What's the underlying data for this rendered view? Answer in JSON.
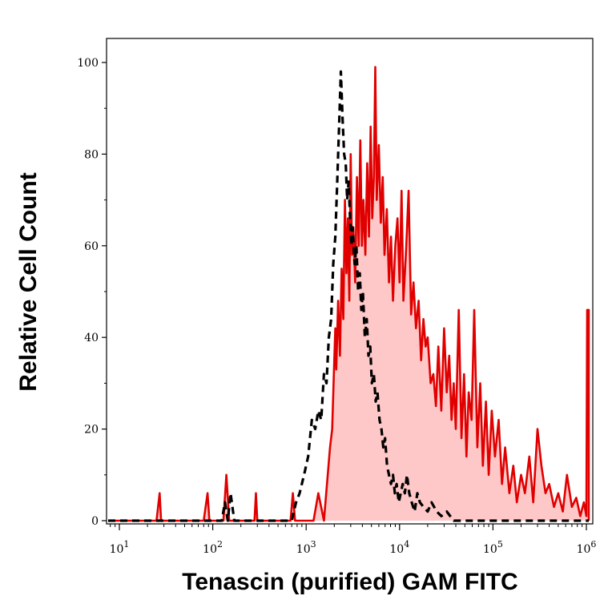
{
  "chart_data": {
    "type": "area",
    "xlabel": "Tenascin (purified) GAM FITC",
    "ylabel": "Relative Cell Count",
    "x_scale": "log",
    "xlim": [
      10,
      1000000
    ],
    "ylim": [
      0,
      100
    ],
    "y_ticks": [
      "0",
      "20",
      "40",
      "60",
      "80",
      "100"
    ],
    "x_ticks": [
      {
        "base": "10",
        "exp": "1",
        "value": 10
      },
      {
        "base": "10",
        "exp": "2",
        "value": 100
      },
      {
        "base": "10",
        "exp": "3",
        "value": 1000
      },
      {
        "base": "10",
        "exp": "4",
        "value": 10000
      },
      {
        "base": "10",
        "exp": "5",
        "value": 100000
      },
      {
        "base": "10",
        "exp": "6",
        "value": 1000000
      }
    ],
    "grid": false,
    "series": [
      {
        "style": "filled red histogram",
        "line_color": "#e00000",
        "fill_color": "#ffc8c8",
        "points": [
          [
            7,
            0
          ],
          [
            25,
            0
          ],
          [
            27,
            6
          ],
          [
            28,
            0
          ],
          [
            80,
            0
          ],
          [
            88,
            6
          ],
          [
            92,
            0
          ],
          [
            130,
            0
          ],
          [
            140,
            10
          ],
          [
            150,
            0
          ],
          [
            280,
            0
          ],
          [
            290,
            6
          ],
          [
            300,
            0
          ],
          [
            680,
            0
          ],
          [
            720,
            6
          ],
          [
            760,
            0
          ],
          [
            1200,
            0
          ],
          [
            1350,
            6
          ],
          [
            1550,
            0
          ],
          [
            1800,
            16
          ],
          [
            1900,
            20
          ],
          [
            2000,
            35
          ],
          [
            2050,
            42
          ],
          [
            2100,
            33
          ],
          [
            2200,
            48
          ],
          [
            2300,
            36
          ],
          [
            2400,
            55
          ],
          [
            2500,
            44
          ],
          [
            2600,
            70
          ],
          [
            2700,
            54
          ],
          [
            2800,
            66
          ],
          [
            2900,
            48
          ],
          [
            3000,
            80
          ],
          [
            3100,
            58
          ],
          [
            3200,
            64
          ],
          [
            3350,
            52
          ],
          [
            3500,
            75
          ],
          [
            3650,
            60
          ],
          [
            3800,
            83
          ],
          [
            3950,
            60
          ],
          [
            4100,
            70
          ],
          [
            4300,
            58
          ],
          [
            4500,
            78
          ],
          [
            4700,
            62
          ],
          [
            4900,
            86
          ],
          [
            5100,
            66
          ],
          [
            5300,
            75
          ],
          [
            5500,
            99
          ],
          [
            5700,
            70
          ],
          [
            6000,
            82
          ],
          [
            6300,
            65
          ],
          [
            6600,
            75
          ],
          [
            6900,
            58
          ],
          [
            7300,
            68
          ],
          [
            7700,
            52
          ],
          [
            8100,
            62
          ],
          [
            8500,
            48
          ],
          [
            9000,
            60
          ],
          [
            9500,
            66
          ],
          [
            10000,
            52
          ],
          [
            10500,
            72
          ],
          [
            11000,
            48
          ],
          [
            11800,
            60
          ],
          [
            12500,
            72
          ],
          [
            13300,
            45
          ],
          [
            14100,
            52
          ],
          [
            15000,
            42
          ],
          [
            16000,
            48
          ],
          [
            17000,
            35
          ],
          [
            18000,
            44
          ],
          [
            19000,
            38
          ],
          [
            20000,
            40
          ],
          [
            21500,
            30
          ],
          [
            23000,
            32
          ],
          [
            24500,
            25
          ],
          [
            26000,
            38
          ],
          [
            28000,
            24
          ],
          [
            30000,
            42
          ],
          [
            32000,
            28
          ],
          [
            34000,
            36
          ],
          [
            36000,
            22
          ],
          [
            38000,
            30
          ],
          [
            40000,
            20
          ],
          [
            43000,
            46
          ],
          [
            46000,
            18
          ],
          [
            49000,
            32
          ],
          [
            52000,
            14
          ],
          [
            55000,
            28
          ],
          [
            59000,
            22
          ],
          [
            63000,
            46
          ],
          [
            68000,
            16
          ],
          [
            73000,
            30
          ],
          [
            78000,
            12
          ],
          [
            84000,
            26
          ],
          [
            90000,
            10
          ],
          [
            97000,
            24
          ],
          [
            105000,
            14
          ],
          [
            115000,
            22
          ],
          [
            125000,
            8
          ],
          [
            135000,
            16
          ],
          [
            150000,
            6
          ],
          [
            165000,
            12
          ],
          [
            180000,
            4
          ],
          [
            200000,
            10
          ],
          [
            220000,
            6
          ],
          [
            245000,
            14
          ],
          [
            270000,
            4
          ],
          [
            300000,
            20
          ],
          [
            330000,
            12
          ],
          [
            365000,
            6
          ],
          [
            400000,
            8
          ],
          [
            450000,
            3
          ],
          [
            500000,
            6
          ],
          [
            560000,
            2
          ],
          [
            620000,
            10
          ],
          [
            700000,
            3
          ],
          [
            780000,
            5
          ],
          [
            860000,
            1
          ],
          [
            940000,
            4
          ],
          [
            1000000,
            1
          ],
          [
            1020000,
            46
          ],
          [
            1060000,
            46
          ],
          [
            1060000,
            0
          ]
        ]
      },
      {
        "style": "black dashed histogram",
        "line_color": "#000000",
        "points": [
          [
            7,
            0
          ],
          [
            125,
            0
          ],
          [
            135,
            4
          ],
          [
            145,
            0
          ],
          [
            155,
            6
          ],
          [
            170,
            0
          ],
          [
            700,
            0
          ],
          [
            780,
            4
          ],
          [
            850,
            6
          ],
          [
            950,
            10
          ],
          [
            1050,
            14
          ],
          [
            1150,
            22
          ],
          [
            1250,
            20
          ],
          [
            1350,
            24
          ],
          [
            1450,
            22
          ],
          [
            1550,
            32
          ],
          [
            1650,
            30
          ],
          [
            1750,
            40
          ],
          [
            1850,
            44
          ],
          [
            1950,
            56
          ],
          [
            2050,
            62
          ],
          [
            2150,
            74
          ],
          [
            2250,
            86
          ],
          [
            2350,
            98
          ],
          [
            2450,
            88
          ],
          [
            2550,
            80
          ],
          [
            2650,
            78
          ],
          [
            2750,
            70
          ],
          [
            2850,
            74
          ],
          [
            2950,
            66
          ],
          [
            3050,
            60
          ],
          [
            3150,
            64
          ],
          [
            3300,
            56
          ],
          [
            3450,
            60
          ],
          [
            3600,
            50
          ],
          [
            3750,
            54
          ],
          [
            3900,
            46
          ],
          [
            4050,
            50
          ],
          [
            4250,
            40
          ],
          [
            4450,
            44
          ],
          [
            4650,
            36
          ],
          [
            4850,
            38
          ],
          [
            5050,
            30
          ],
          [
            5300,
            32
          ],
          [
            5550,
            26
          ],
          [
            5800,
            28
          ],
          [
            6100,
            22
          ],
          [
            6400,
            20
          ],
          [
            6700,
            16
          ],
          [
            7000,
            18
          ],
          [
            7350,
            12
          ],
          [
            7700,
            10
          ],
          [
            8100,
            8
          ],
          [
            8500,
            10
          ],
          [
            8900,
            6
          ],
          [
            9300,
            8
          ],
          [
            9800,
            4
          ],
          [
            10300,
            6
          ],
          [
            10800,
            8
          ],
          [
            11400,
            6
          ],
          [
            12000,
            10
          ],
          [
            12700,
            6
          ],
          [
            13500,
            4
          ],
          [
            14500,
            2
          ],
          [
            15500,
            6
          ],
          [
            16500,
            4
          ],
          [
            18000,
            3
          ],
          [
            20000,
            2
          ],
          [
            22000,
            4
          ],
          [
            25000,
            2
          ],
          [
            28000,
            1
          ],
          [
            32000,
            2
          ],
          [
            38000,
            0
          ],
          [
            1060000,
            0
          ]
        ]
      }
    ]
  }
}
